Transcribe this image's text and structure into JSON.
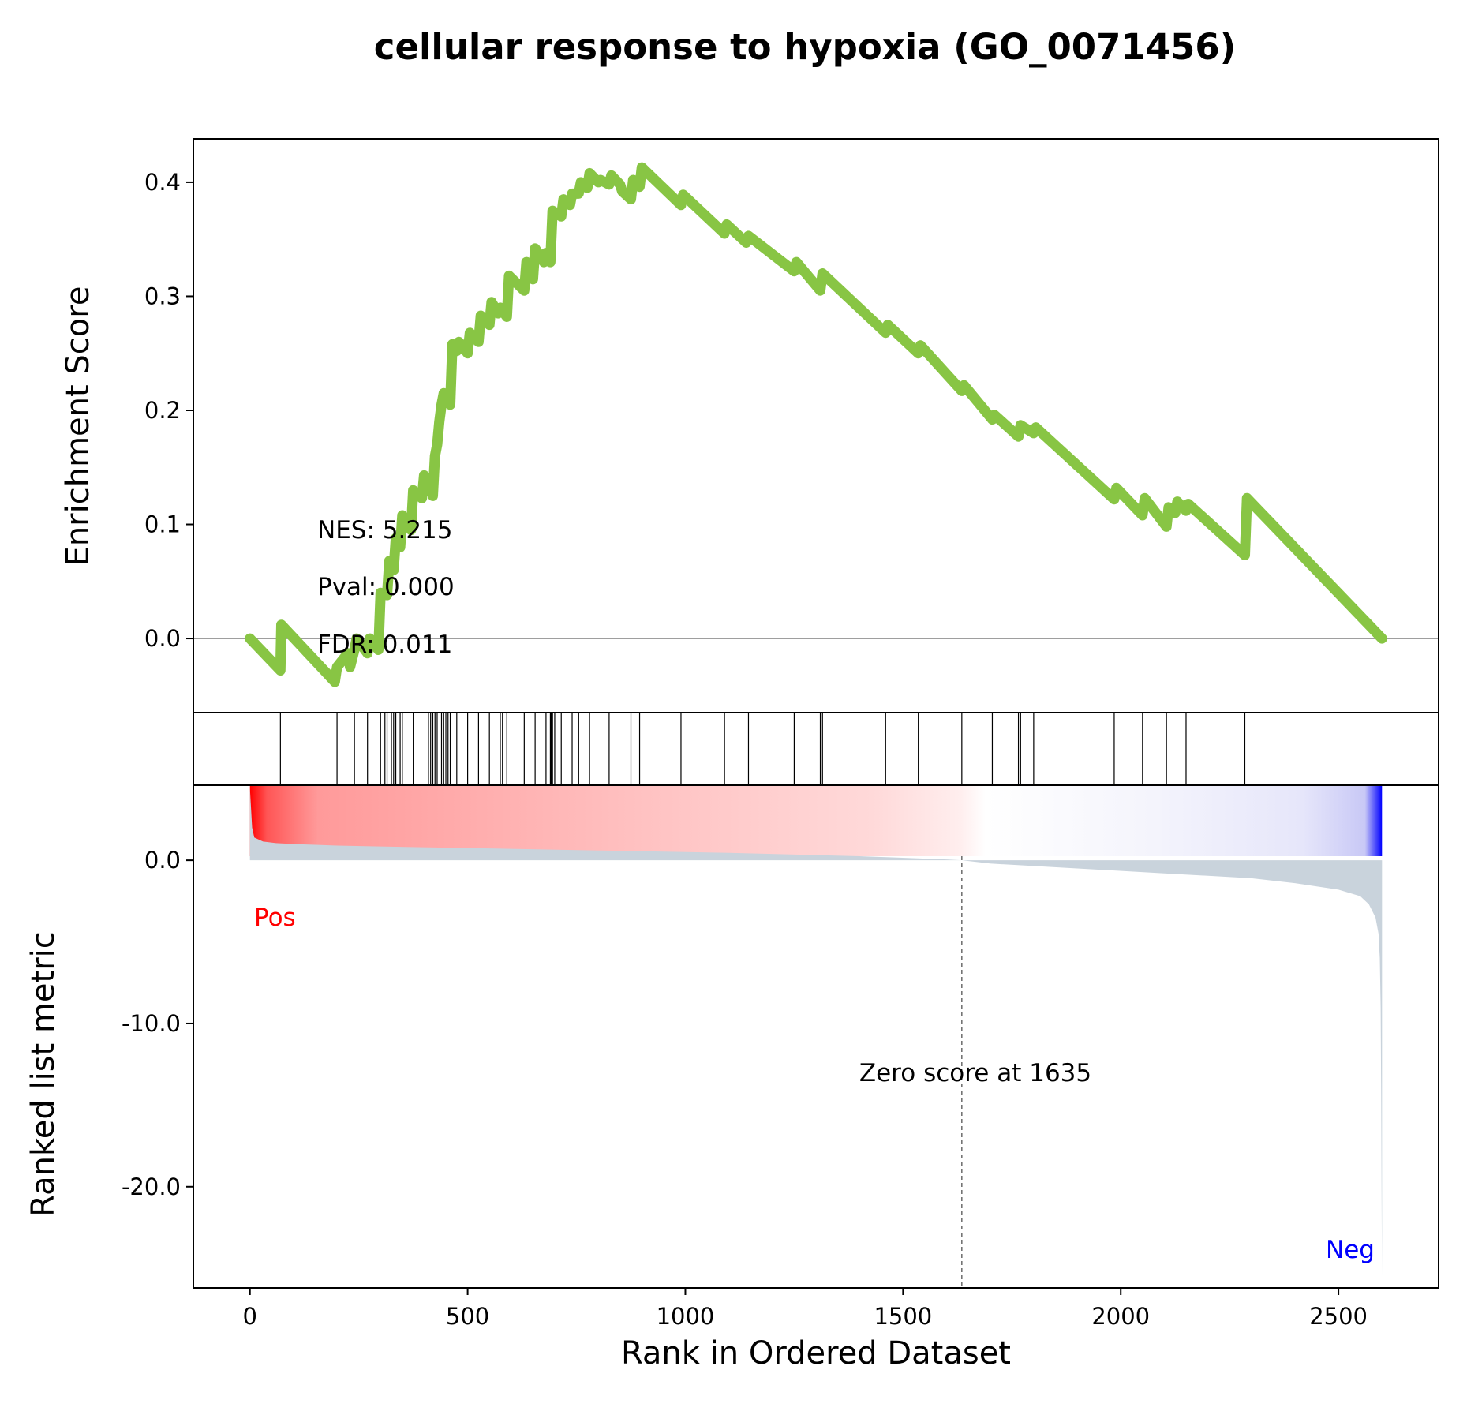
{
  "chart_data": {
    "type": "line",
    "title": "cellular response to hypoxia (GO_0071456)",
    "xlabel": "Rank in Ordered Dataset",
    "xlim": [
      -130,
      2730
    ],
    "x_ticks": [
      "0",
      "500",
      "1000",
      "1500",
      "2000",
      "2500"
    ],
    "x_tick_values": [
      0,
      500,
      1000,
      1500,
      2000,
      2500
    ],
    "enrichment": {
      "ylabel": "Enrichment Score",
      "ylim": [
        -0.065,
        0.438
      ],
      "y_ticks": [
        "0.0",
        "0.1",
        "0.2",
        "0.3",
        "0.4"
      ],
      "y_tick_values": [
        0.0,
        0.1,
        0.2,
        0.3,
        0.4
      ],
      "line_color": "#88c544",
      "series": [
        {
          "x": [
            0,
            70,
            72,
            195,
            200,
            225,
            230,
            240,
            245,
            270,
            275,
            295,
            300,
            315,
            320,
            330,
            335,
            345,
            350,
            370,
            375,
            395,
            400,
            410,
            415,
            420,
            425,
            430,
            435,
            440,
            445,
            460,
            465,
            475,
            480,
            500,
            505,
            525,
            530,
            550,
            555,
            570,
            575,
            590,
            595,
            630,
            635,
            650,
            655,
            675,
            680,
            690,
            695,
            715,
            720,
            735,
            740,
            755,
            760,
            775,
            780,
            800,
            805,
            825,
            830,
            850,
            855,
            875,
            880,
            895,
            900,
            990,
            995,
            1090,
            1095,
            1140,
            1145,
            1250,
            1255,
            1310,
            1315,
            1460,
            1465,
            1535,
            1540,
            1635,
            1640,
            1705,
            1710,
            1765,
            1770,
            1800,
            1805,
            1985,
            1990,
            2050,
            2055,
            2105,
            2110,
            2125,
            2130,
            2150,
            2155,
            2285,
            2290,
            2600
          ],
          "y": [
            0.0,
            -0.028,
            0.012,
            -0.038,
            -0.025,
            -0.013,
            -0.025,
            -0.01,
            0.0,
            -0.013,
            0.0,
            -0.01,
            0.04,
            0.038,
            0.068,
            0.06,
            0.088,
            0.08,
            0.108,
            0.095,
            0.13,
            0.123,
            0.143,
            0.138,
            0.13,
            0.125,
            0.16,
            0.17,
            0.19,
            0.205,
            0.215,
            0.205,
            0.258,
            0.252,
            0.26,
            0.25,
            0.268,
            0.26,
            0.283,
            0.275,
            0.295,
            0.285,
            0.29,
            0.282,
            0.318,
            0.305,
            0.33,
            0.315,
            0.342,
            0.33,
            0.338,
            0.33,
            0.375,
            0.37,
            0.385,
            0.38,
            0.39,
            0.39,
            0.4,
            0.395,
            0.408,
            0.4,
            0.402,
            0.398,
            0.406,
            0.398,
            0.392,
            0.385,
            0.402,
            0.396,
            0.413,
            0.38,
            0.389,
            0.355,
            0.363,
            0.347,
            0.353,
            0.322,
            0.33,
            0.305,
            0.32,
            0.268,
            0.275,
            0.25,
            0.257,
            0.217,
            0.222,
            0.192,
            0.196,
            0.177,
            0.187,
            0.18,
            0.185,
            0.122,
            0.132,
            0.108,
            0.123,
            0.098,
            0.115,
            0.11,
            0.12,
            0.112,
            0.118,
            0.073,
            0.123,
            0.0
          ]
        }
      ],
      "annotations": [
        "NES: 5.215",
        "Pval: 0.000",
        "FDR: 0.011"
      ]
    },
    "hits": [
      70,
      200,
      240,
      270,
      300,
      310,
      315,
      325,
      330,
      335,
      345,
      350,
      375,
      410,
      415,
      420,
      425,
      430,
      440,
      445,
      450,
      455,
      460,
      475,
      500,
      525,
      550,
      575,
      580,
      590,
      630,
      655,
      680,
      690,
      692,
      695,
      700,
      715,
      740,
      755,
      780,
      825,
      875,
      895,
      990,
      1090,
      1145,
      1250,
      1310,
      1315,
      1460,
      1535,
      1635,
      1705,
      1765,
      1770,
      1800,
      1985,
      2050,
      2105,
      2150,
      2285
    ],
    "ranked_metric": {
      "ylabel": "Ranked list metric",
      "ylim": [
        -26.2,
        4.6
      ],
      "y_ticks": [
        "0.0",
        "-10.0",
        "-20.0"
      ],
      "y_tick_values": [
        0.0,
        -10.0,
        -20.0
      ],
      "fill_color": "#c9d3dc",
      "zero_score_rank": 1635,
      "zero_label": "Zero score at 1635",
      "pos_label": "Pos",
      "neg_label": "Neg",
      "pos_color": "#ff0000",
      "neg_color": "#0000ff",
      "x": [
        0,
        5,
        10,
        30,
        60,
        100,
        150,
        200,
        300,
        500,
        800,
        1100,
        1400,
        1600,
        1635,
        1700,
        1900,
        2100,
        2300,
        2400,
        2500,
        2550,
        2570,
        2585,
        2592,
        2595,
        2597,
        2598,
        2599,
        2600
      ],
      "y": [
        4.4,
        2.0,
        1.4,
        1.15,
        1.05,
        1.0,
        0.95,
        0.9,
        0.85,
        0.75,
        0.6,
        0.45,
        0.25,
        0.05,
        0.0,
        -0.2,
        -0.5,
        -0.8,
        -1.1,
        -1.4,
        -1.8,
        -2.2,
        -2.7,
        -3.5,
        -4.5,
        -6.0,
        -9.0,
        -14.0,
        -20.0,
        -25.5
      ]
    }
  }
}
